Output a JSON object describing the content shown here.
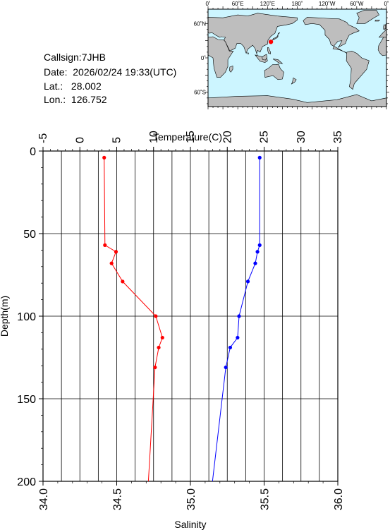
{
  "info": {
    "callsign_label": "Callsign:",
    "callsign": "7JHB",
    "date_label": "Date:",
    "date": "2026/02/24 19:33(UTC)",
    "lat_label": "Lat.:",
    "lat": "28.002",
    "lon_label": "Lon.:",
    "lon": "126.752"
  },
  "map": {
    "top_labels": [
      "0˚",
      "60˚E",
      "120˚E",
      "180˚",
      "120˚W",
      "60˚W",
      "0˚"
    ],
    "lat_labels": [
      "60˚N",
      "0˚",
      "60˚S"
    ],
    "ocean_color": "#ccf5ff",
    "land_color": "#bebebe",
    "marker_color": "#ff0000",
    "marker_lon": 126.752,
    "marker_lat": 28.002
  },
  "chart_data": {
    "type": "line",
    "x_top_label": "Temperature(C)",
    "x_bottom_label": "Salinity",
    "ylabel": "Depth(m)",
    "temperature_range": [
      -5,
      35
    ],
    "temperature_ticks": [
      "-5",
      "0",
      "5",
      "10",
      "15",
      "20",
      "25",
      "30",
      "35"
    ],
    "salinity_range": [
      34.0,
      36.0
    ],
    "salinity_ticks": [
      "34.0",
      "34.5",
      "35.0",
      "35.5",
      "36.0"
    ],
    "depth_range": [
      0,
      200
    ],
    "depth_ticks": [
      "0",
      "50",
      "100",
      "150",
      "200"
    ],
    "grid": true,
    "series": [
      {
        "name": "Temperature",
        "color": "#ff0000",
        "axis": "temperature",
        "depth": [
          4,
          57,
          61,
          68,
          79,
          100,
          113,
          119,
          131,
          200
        ],
        "values": [
          3.3,
          3.4,
          4.9,
          4.3,
          5.8,
          10.3,
          11.2,
          10.7,
          10.2,
          9.3
        ],
        "markers": [
          true,
          true,
          true,
          true,
          true,
          true,
          true,
          true,
          true,
          false
        ]
      },
      {
        "name": "Salinity",
        "color": "#0000ff",
        "axis": "salinity",
        "depth": [
          4,
          57,
          61,
          68,
          79,
          100,
          113,
          119,
          131,
          200
        ],
        "values": [
          35.47,
          35.47,
          35.455,
          35.44,
          35.39,
          35.33,
          35.32,
          35.27,
          35.24,
          35.15
        ],
        "markers": [
          true,
          true,
          true,
          true,
          true,
          true,
          true,
          true,
          true,
          false
        ]
      }
    ]
  }
}
